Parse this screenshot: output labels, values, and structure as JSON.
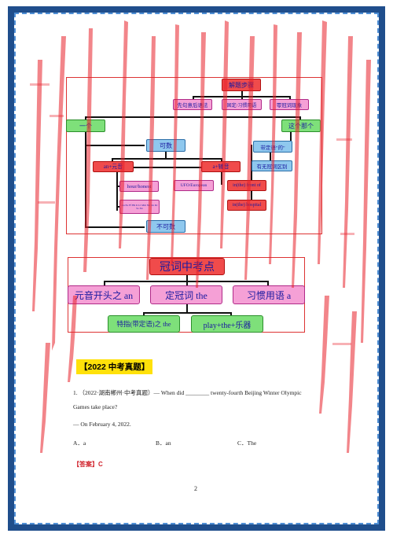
{
  "flowchart": {
    "top": "解题步骤",
    "step1": "先句意后语法",
    "step2": "固定/习惯用语",
    "step3": "零冠词现象",
    "left": "一个",
    "right": "这个那个",
    "countable": "可数",
    "an_vowel": "an+元音",
    "a_consonant": "a+辅音",
    "hour_honest": "hour/honest",
    "letters": "An Ee Ff Hh Ii Ll Mm Nn Oo Rr Ss Xx",
    "ufo": "UFO/European",
    "in_front_of": "in(the) front of",
    "in_hospital": "in(the) hospital",
    "modifier": "带定语\"的\"",
    "zero_article_diff": "有无冠词区别",
    "uncountable": "不可数"
  },
  "exam_points": {
    "title": "冠词中考点",
    "vowel_an": "元音开头之 an",
    "definite_the": "定冠词 the",
    "idiom_a": "习惯用语 a",
    "specific_the": "特指(带定语)之 the",
    "play_the": "play+the+乐器"
  },
  "section_title": "【2022 中考真题】",
  "question": {
    "line1": "1. （2022·湖南郴州·中考真题）— When did ________ twenty-fourth Beijing Winter Olympic",
    "line2": "Games take place?",
    "line3": "— On February 4, 2022.",
    "options": [
      "A．a",
      "B．an",
      "C．The"
    ]
  },
  "answer": "【答案】C",
  "page_number": "2",
  "colors": {
    "frame": "#1f4e8c",
    "streak": "#e8202a",
    "highlight": "#ffe10a"
  }
}
